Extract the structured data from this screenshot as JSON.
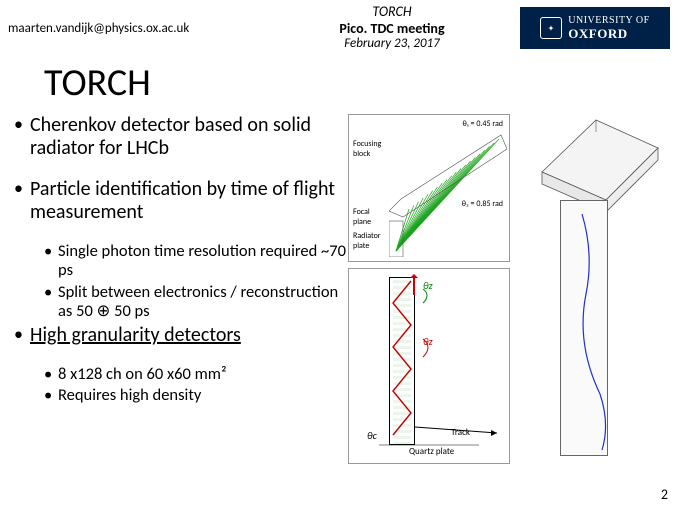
{
  "header": {
    "email": "maarten.vandijk@physics.ox.ac.uk",
    "line1": "TORCH",
    "line2": "Pico. TDC meeting",
    "line3": "February 23, 2017",
    "badge_text": "UNIVERSITY OF",
    "badge_text2": "OXFORD",
    "badge_bg": "#002147"
  },
  "title": "TORCH",
  "bullets": [
    {
      "text": "Cherenkov detector based on solid radiator for LHCb",
      "subs": []
    },
    {
      "text": "Particle identification by time of flight measurement",
      "subs": [
        "Single photon time resolution required ~70 ps",
        "Split between electronics / reconstruction as 50 ⊕ 50 ps"
      ]
    },
    {
      "text": "High granularity detectors",
      "underline": true,
      "subs": [
        "8 x128 ch on 60 x60 mm²",
        "Requires high density"
      ]
    }
  ],
  "fig_top": {
    "labels": {
      "focusing_block": "Focusing block",
      "focal_plane": "Focal plane",
      "radiator_plate": "Radiator plate",
      "theta_top": "θ₁ = 0.45 rad",
      "theta_mid": "θ₂ = 0.85 rad"
    },
    "ray_color": "#19a319",
    "n_rays": 20
  },
  "fig_bot": {
    "labels": {
      "theta_z": "θz",
      "theta_z2": "θz",
      "theta_c": "θc",
      "track": "Track",
      "quartz": "Quartz plate"
    },
    "zig_color": "#c00000",
    "plate_border": "#000000"
  },
  "fig_right": {
    "prism_stroke": "#333333",
    "plate_stroke": "#666666",
    "track_color": "#2030d0"
  },
  "page_number": "2"
}
